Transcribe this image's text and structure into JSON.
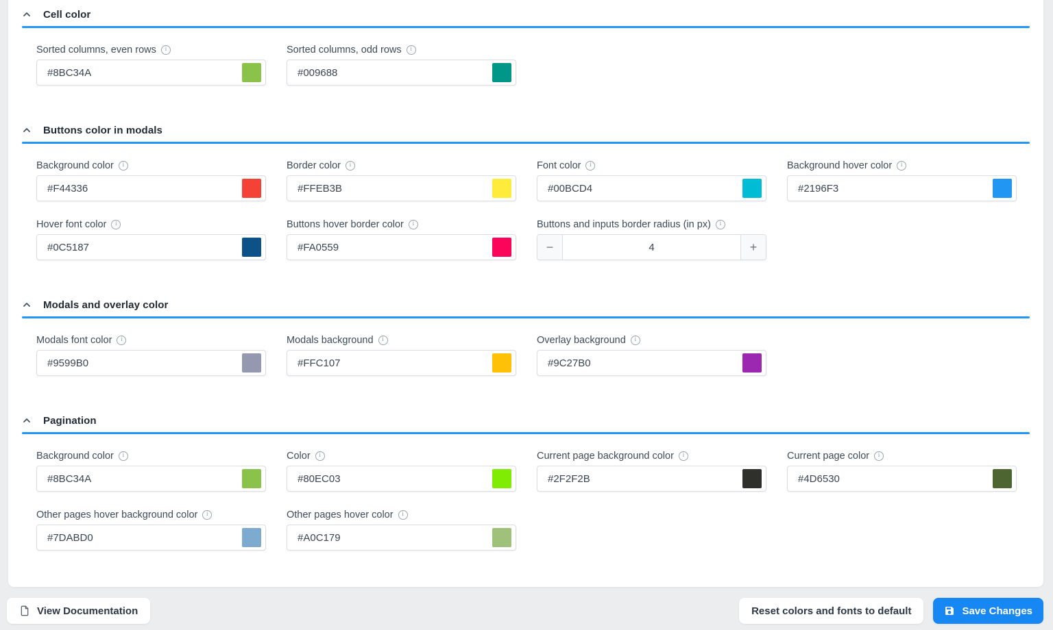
{
  "page": {
    "background_color": "#ECEDEE",
    "accent_line_color": "#2196F3"
  },
  "icons": {
    "info": "i"
  },
  "sections": [
    {
      "title": "Cell color",
      "rows": [
        [
          {
            "type": "color",
            "label": "Sorted columns, even rows",
            "value": "#8BC34A",
            "swatch": "#8BC34A"
          },
          {
            "type": "color",
            "label": "Sorted columns, odd rows",
            "value": "#009688",
            "swatch": "#009688"
          }
        ]
      ]
    },
    {
      "title": "Buttons color in modals",
      "rows": [
        [
          {
            "type": "color",
            "label": "Background color",
            "value": "#F44336",
            "swatch": "#F44336"
          },
          {
            "type": "color",
            "label": "Border color",
            "value": "#FFEB3B",
            "swatch": "#FFEB3B"
          },
          {
            "type": "color",
            "label": "Font color",
            "value": "#00BCD4",
            "swatch": "#00BCD4"
          },
          {
            "type": "color",
            "label": "Background hover color",
            "value": "#2196F3",
            "swatch": "#2196F3"
          }
        ],
        [
          {
            "type": "color",
            "label": "Hover font color",
            "value": "#0C5187",
            "swatch": "#0C5187"
          },
          {
            "type": "color",
            "label": "Buttons hover border color",
            "value": "#FA0559",
            "swatch": "#FA0559"
          },
          {
            "type": "stepper",
            "label": "Buttons and inputs border radius (in px)",
            "value": "4",
            "minus": "−",
            "plus": "+"
          }
        ]
      ]
    },
    {
      "title": "Modals and overlay color",
      "rows": [
        [
          {
            "type": "color",
            "label": "Modals font color",
            "value": "#9599B0",
            "swatch": "#9599B0"
          },
          {
            "type": "color",
            "label": "Modals background",
            "value": "#FFC107",
            "swatch": "#FFC107"
          },
          {
            "type": "color",
            "label": "Overlay background",
            "value": "#9C27B0",
            "swatch": "#9C27B0"
          }
        ]
      ]
    },
    {
      "title": "Pagination",
      "rows": [
        [
          {
            "type": "color",
            "label": "Background color",
            "value": "#8BC34A",
            "swatch": "#8BC34A"
          },
          {
            "type": "color",
            "label": "Color",
            "value": "#80EC03",
            "swatch": "#80EC03"
          },
          {
            "type": "color",
            "label": "Current page background color",
            "value": "#2F2F2B",
            "swatch": "#2F2F2B"
          },
          {
            "type": "color",
            "label": "Current page color",
            "value": "#4D6530",
            "swatch": "#4D6530"
          }
        ],
        [
          {
            "type": "color",
            "label": "Other pages hover background color",
            "value": "#7DABD0",
            "swatch": "#7DABD0"
          },
          {
            "type": "color",
            "label": "Other pages hover color",
            "value": "#A0C179",
            "swatch": "#A0C179"
          }
        ]
      ]
    }
  ],
  "footer": {
    "view_documentation_label": "View Documentation",
    "reset_label": "Reset colors and fonts to default",
    "save_label": "Save Changes",
    "save_button_color": "#1787F3"
  }
}
